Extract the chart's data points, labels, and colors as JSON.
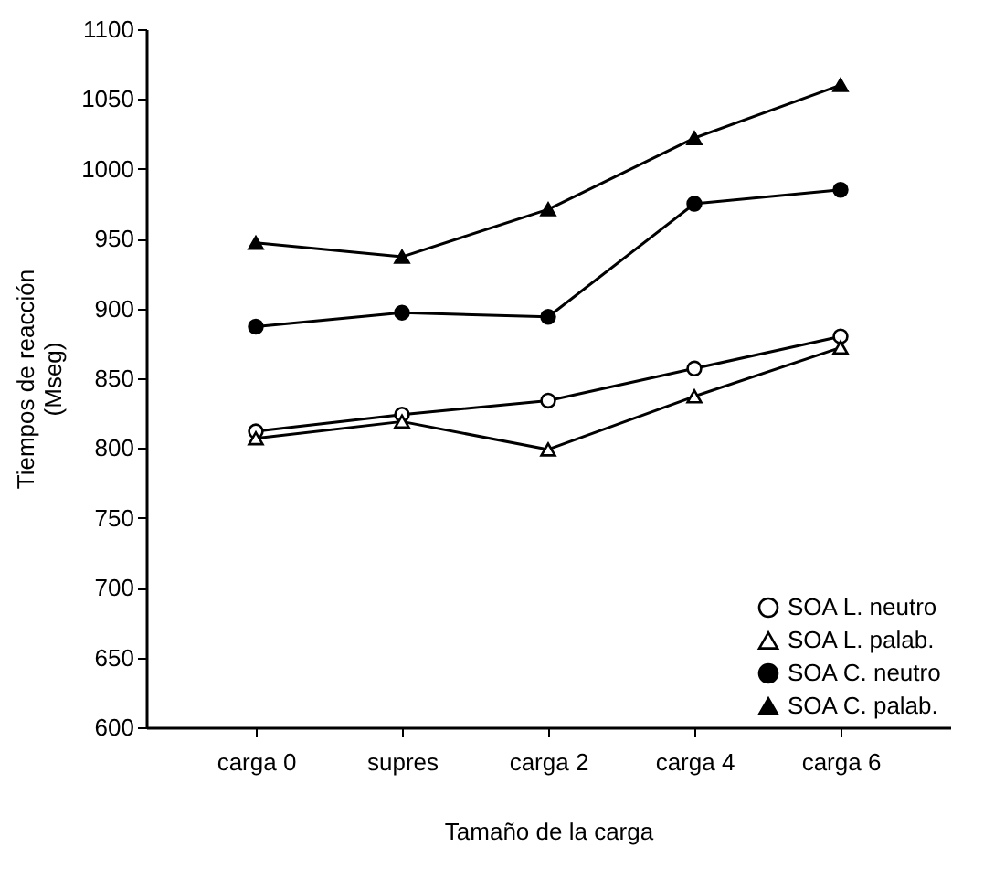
{
  "chart_data": {
    "type": "line",
    "xlabel": "Tamaño de la carga",
    "ylabel": "Tiempos de reacción\n(Mseg)",
    "categories": [
      "carga 0",
      "supres",
      "carga 2",
      "carga 4",
      "carga 6"
    ],
    "series": [
      {
        "name": "SOA L. neutro",
        "color": "#000000",
        "marker": "circle-open",
        "values": [
          812,
          824,
          834,
          857,
          880
        ]
      },
      {
        "name": "SOA L. palab.",
        "color": "#000000",
        "marker": "triangle-open",
        "values": [
          807,
          819,
          799,
          837,
          872
        ]
      },
      {
        "name": "SOA C. neutro",
        "color": "#000000",
        "marker": "circle",
        "values": [
          887,
          897,
          894,
          975,
          985
        ]
      },
      {
        "name": "SOA C. palab.",
        "color": "#000000",
        "marker": "triangle",
        "values": [
          947,
          937,
          971,
          1022,
          1060
        ]
      }
    ],
    "ylim": [
      600,
      1100
    ],
    "yticks": [
      600,
      650,
      700,
      750,
      800,
      850,
      900,
      950,
      1000,
      1050,
      1100
    ],
    "grid": false,
    "legend": "bottom right",
    "line_style": "solid"
  }
}
